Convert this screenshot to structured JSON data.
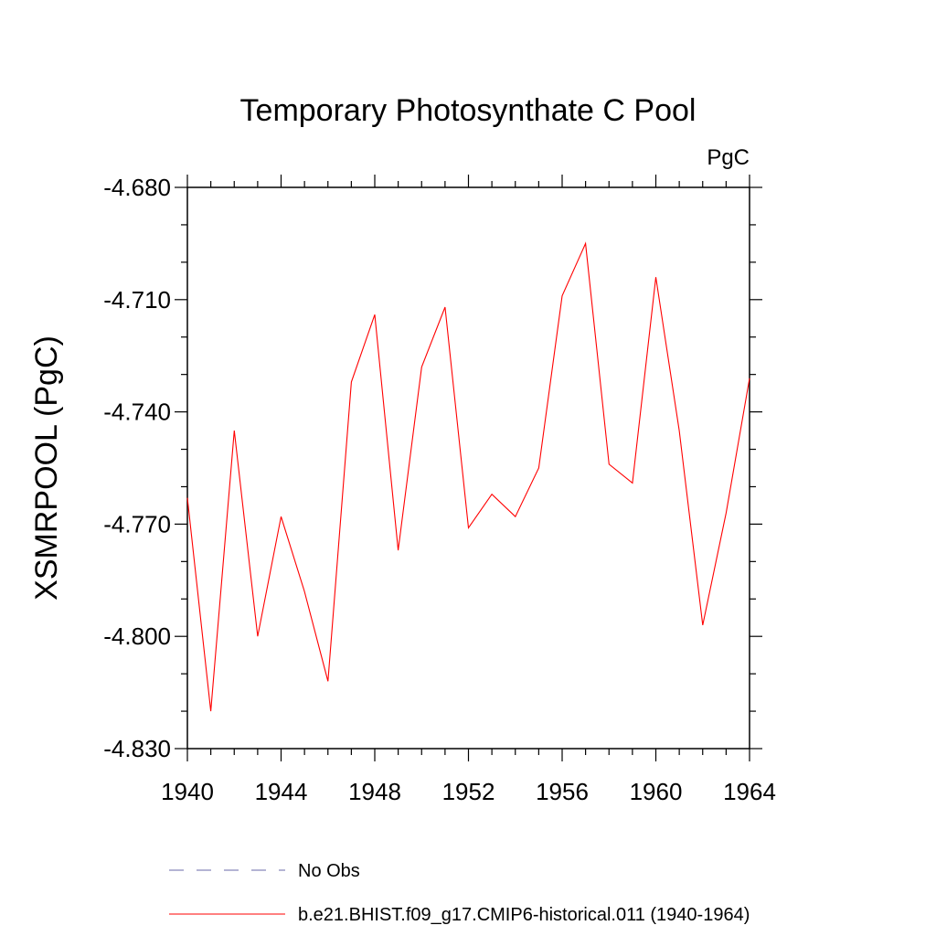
{
  "chart_data": {
    "type": "line",
    "title": "Temporary Photosynthate C Pool",
    "units_label": "PgC",
    "ylabel": "XSMRPOOL  (PgC)",
    "xlabel": "",
    "xlim": [
      1940,
      1964
    ],
    "ylim": [
      -4.83,
      -4.68
    ],
    "x_ticks": [
      1940,
      1944,
      1948,
      1952,
      1956,
      1960,
      1964
    ],
    "x_tick_labels": [
      "1940",
      "1944",
      "1948",
      "1952",
      "1956",
      "1960",
      "1964"
    ],
    "y_ticks": [
      -4.68,
      -4.71,
      -4.74,
      -4.77,
      -4.8,
      -4.83
    ],
    "y_tick_labels": [
      "-4.680",
      "-4.710",
      "-4.740",
      "-4.770",
      "-4.800",
      "-4.830"
    ],
    "y_minor_step": 0.01,
    "x_minor_step": 1,
    "grid": false,
    "legend_placement": "bottom",
    "series": [
      {
        "name": "b.e21.BHIST.f09_g17.CMIP6-historical.011 (1940-1964)",
        "color": "#ff0000",
        "style": "solid",
        "x": [
          1940,
          1941,
          1942,
          1943,
          1944,
          1945,
          1946,
          1947,
          1948,
          1949,
          1950,
          1951,
          1952,
          1953,
          1954,
          1955,
          1956,
          1957,
          1958,
          1959,
          1960,
          1961,
          1962,
          1963,
          1964
        ],
        "y": [
          -4.763,
          -4.82,
          -4.745,
          -4.8,
          -4.768,
          -4.788,
          -4.812,
          -4.732,
          -4.714,
          -4.777,
          -4.728,
          -4.712,
          -4.771,
          -4.762,
          -4.768,
          -4.755,
          -4.709,
          -4.695,
          -4.754,
          -4.759,
          -4.704,
          -4.745,
          -4.797,
          -4.767,
          -4.731
        ]
      }
    ],
    "legend": [
      {
        "label": "No Obs",
        "color": "#6a6aa8",
        "style": "dashed"
      },
      {
        "label": "b.e21.BHIST.f09_g17.CMIP6-historical.011 (1940-1964)",
        "color": "#ff0000",
        "style": "solid"
      }
    ]
  }
}
